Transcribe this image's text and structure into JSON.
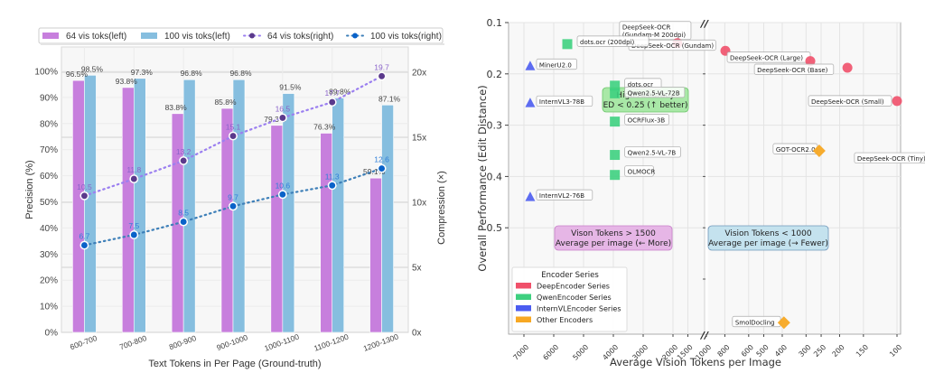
{
  "chart_data": [
    {
      "type": "bar",
      "title": "",
      "xlabel": "Text Tokens in Per Page (Ground-truth)",
      "ylabel": "Precision (%)",
      "ylabel_right": "Compression (×)",
      "categories": [
        "600-700",
        "700-800",
        "800-900",
        "900-1000",
        "1000-1100",
        "1100-1200",
        "1200-1300"
      ],
      "ylim": [
        0,
        100
      ],
      "ylim_right": [
        0,
        21.5
      ],
      "yticks": [
        "0%",
        "10%",
        "20%",
        "30%",
        "40%",
        "50%",
        "60%",
        "70%",
        "80%",
        "90%",
        "100%"
      ],
      "yticks_right": [
        "0x",
        "5x",
        "10x",
        "15x",
        "20x"
      ],
      "legend_position": "top",
      "grid": true,
      "series": [
        {
          "name": "64 vis toks(left)",
          "kind": "bar",
          "axis": "left",
          "color": "#c77fdd",
          "values": [
            96.5,
            93.8,
            83.8,
            85.8,
            79.3,
            76.3,
            59.1
          ],
          "labels": [
            "96.5%",
            "93.8%",
            "83.8%",
            "85.8%",
            "79.3%",
            "76.3%",
            "59.1%"
          ]
        },
        {
          "name": "100 vis toks(left)",
          "kind": "bar",
          "axis": "left",
          "color": "#86bedf",
          "values": [
            98.5,
            97.3,
            96.8,
            96.8,
            91.5,
            89.8,
            87.1
          ],
          "labels": [
            "98.5%",
            "97.3%",
            "96.8%",
            "96.8%",
            "91.5%",
            "89.8%",
            "87.1%"
          ]
        },
        {
          "name": "64 vis toks(right)",
          "kind": "line",
          "axis": "right",
          "color": "#5b3a8c",
          "line_color": "#9b7ff0",
          "label_color": "#8a63c9",
          "values": [
            10.5,
            11.8,
            13.2,
            15.1,
            16.5,
            17.7,
            19.7
          ],
          "labels": [
            "10.5",
            "11.8",
            "13.2",
            "15.1",
            "16.5",
            "17.7",
            "19.7"
          ]
        },
        {
          "name": "100 vis toks(right)",
          "kind": "line",
          "axis": "right",
          "color": "#0a62c9",
          "line_color": "#3d7fb8",
          "label_color": "#2f7fd9",
          "values": [
            6.7,
            7.5,
            8.5,
            9.7,
            10.6,
            11.3,
            12.6
          ],
          "labels": [
            "6.7",
            "7.5",
            "8.5",
            "9.7",
            "10.6",
            "11.3",
            "12.6"
          ]
        }
      ]
    },
    {
      "type": "scatter",
      "title": "",
      "xlabel": "Average Vision Tokens per Image",
      "ylabel": "Overall Performance (Edit Distance)",
      "x_scale": "broken-axis (left: linear 7000→1500, right: log 1000→100), inverted",
      "xticks": [
        "7000",
        "6000",
        "5000",
        "4000",
        "3000",
        "2000",
        "1500",
        "1000",
        "800",
        "600",
        "500",
        "400",
        "300",
        "250",
        "200",
        "150",
        "100"
      ],
      "ylim": [
        0.1,
        0.72
      ],
      "y_inverted": true,
      "yticks": [
        "0.1",
        "0.2",
        "0.3",
        "0.4",
        "0.5"
      ],
      "grid": true,
      "legend_title": "Encoder Series",
      "legend_position": "lower-left",
      "series": [
        {
          "name": "DeepEncoder Series",
          "marker": "circle",
          "color": "#f0506a",
          "points": [
            {
              "label": "DeepSeek-OCR (Gundam-M 200dpi)",
              "x": 1853,
              "y": 0.14
            },
            {
              "label": "DeepSeek-OCR (Gundam)",
              "x": 795,
              "y": 0.155
            },
            {
              "label": "DeepSeek-OCR (Large)",
              "x": 285,
              "y": 0.175
            },
            {
              "label": "DeepSeek-OCR (Base)",
              "x": 182,
              "y": 0.188
            },
            {
              "label": "DeepSeek-OCR (Small)",
              "x": 100,
              "y": 0.253
            },
            {
              "label": "DeepSeek-OCR (Tiny)",
              "x": 64,
              "y": 0.373
            }
          ]
        },
        {
          "name": "QwenEncoder Series",
          "marker": "square",
          "color": "#3ed07f",
          "points": [
            {
              "label": "dots.ocr (200dpi)",
              "x": 5545,
              "y": 0.142
            },
            {
              "label": "dots.ocr",
              "x": 3950,
              "y": 0.223
            },
            {
              "label": "Qwen2.5-VL-72B",
              "x": 3950,
              "y": 0.238
            },
            {
              "label": "OCRFlux-3B",
              "x": 3950,
              "y": 0.293
            },
            {
              "label": "Qwen2.5-VL-7B",
              "x": 3950,
              "y": 0.358
            },
            {
              "label": "OLMOCR",
              "x": 3950,
              "y": 0.397
            }
          ]
        },
        {
          "name": "InternVLEncoder Series",
          "marker": "triangle",
          "color": "#4b5cf0",
          "points": [
            {
              "label": "MinerU2.0",
              "x": 6790,
              "y": 0.185
            },
            {
              "label": "InternVL3-78B",
              "x": 6790,
              "y": 0.257
            },
            {
              "label": "InternVL2-76B",
              "x": 6790,
              "y": 0.44
            }
          ]
        },
        {
          "name": "Other Encoders",
          "marker": "diamond",
          "color": "#f7a823",
          "points": [
            {
              "label": "GOT-OCR2.0",
              "x": 256,
              "y": 0.35
            },
            {
              "label": "SmolDocling",
              "x": 392,
              "y": 0.685
            }
          ]
        }
      ],
      "annotations": [
        {
          "id": "high-accuracy",
          "lines": [
            "High Accuracy",
            "ED < 0.25 (↑ better)"
          ],
          "bg": "#a9e8a7",
          "border": "#6cc56a"
        },
        {
          "id": "more-tokens",
          "lines": [
            "Vison Tokens > 1500",
            "Average per image (← More)"
          ],
          "bg": "#e6b6e6",
          "border": "#c77fc9"
        },
        {
          "id": "fewer-tokens",
          "lines": [
            "Vision Tokens < 1000",
            "Average per image (→ Fewer)"
          ],
          "bg": "#c4e2ee",
          "border": "#6f96ba"
        }
      ],
      "break_marker": "//"
    }
  ]
}
